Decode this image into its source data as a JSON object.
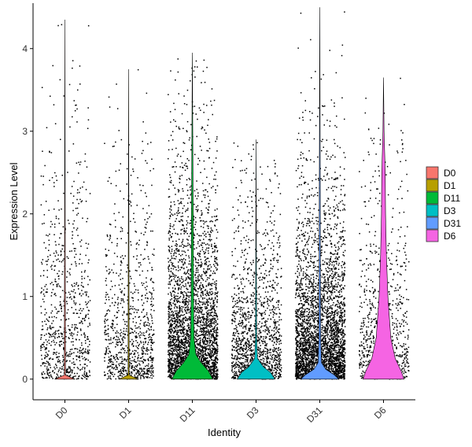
{
  "chart_data": {
    "type": "violin",
    "xlabel": "Identity",
    "ylabel": "Expression Level",
    "ylim": [
      -0.25,
      4.55
    ],
    "y_ticks": [
      0,
      1,
      2,
      3,
      4
    ],
    "grid": false,
    "legend_position": "right",
    "point_color": "#000000",
    "groups": [
      {
        "label": "D0",
        "color": "#F8766D",
        "max": 4.35,
        "n_points": 800,
        "point_max": 4.3,
        "spread": 0.95,
        "density": [
          [
            0.0,
            0.35
          ],
          [
            0.02,
            0.2
          ],
          [
            0.05,
            0.02
          ],
          [
            4.35,
            0.0
          ]
        ]
      },
      {
        "label": "D1",
        "color": "#B79F00",
        "max": 3.75,
        "n_points": 900,
        "point_max": 3.75,
        "spread": 0.75,
        "density": [
          [
            0.0,
            0.35
          ],
          [
            0.02,
            0.2
          ],
          [
            0.05,
            0.02
          ],
          [
            3.75,
            0.0
          ]
        ]
      },
      {
        "label": "D11",
        "color": "#00BA38",
        "max": 3.95,
        "n_points": 3200,
        "point_max": 3.95,
        "spread": 0.8,
        "density": [
          [
            0.0,
            0.7
          ],
          [
            0.1,
            0.55
          ],
          [
            0.2,
            0.3
          ],
          [
            0.3,
            0.12
          ],
          [
            0.5,
            0.06
          ],
          [
            1.0,
            0.04
          ],
          [
            2.0,
            0.03
          ],
          [
            2.7,
            0.02
          ],
          [
            3.95,
            0.0
          ]
        ]
      },
      {
        "label": "D3",
        "color": "#00BFC4",
        "max": 2.9,
        "n_points": 1400,
        "point_max": 2.9,
        "spread": 0.7,
        "density": [
          [
            0.0,
            0.65
          ],
          [
            0.08,
            0.5
          ],
          [
            0.15,
            0.25
          ],
          [
            0.25,
            0.05
          ],
          [
            0.5,
            0.02
          ],
          [
            2.9,
            0.0
          ]
        ]
      },
      {
        "label": "D31",
        "color": "#619CFF",
        "max": 4.5,
        "n_points": 3600,
        "point_max": 4.5,
        "spread": 0.7,
        "density": [
          [
            0.0,
            0.65
          ],
          [
            0.05,
            0.5
          ],
          [
            0.12,
            0.2
          ],
          [
            0.2,
            0.06
          ],
          [
            0.5,
            0.03
          ],
          [
            4.5,
            0.0
          ]
        ]
      },
      {
        "label": "D6",
        "color": "#F564E3",
        "max": 3.65,
        "n_points": 800,
        "point_max": 3.65,
        "spread": 0.8,
        "density": [
          [
            0.0,
            0.7
          ],
          [
            0.1,
            0.6
          ],
          [
            0.25,
            0.4
          ],
          [
            0.5,
            0.25
          ],
          [
            1.0,
            0.15
          ],
          [
            1.5,
            0.1
          ],
          [
            2.0,
            0.07
          ],
          [
            2.5,
            0.06
          ],
          [
            3.0,
            0.02
          ],
          [
            3.65,
            0.0
          ]
        ]
      }
    ]
  }
}
